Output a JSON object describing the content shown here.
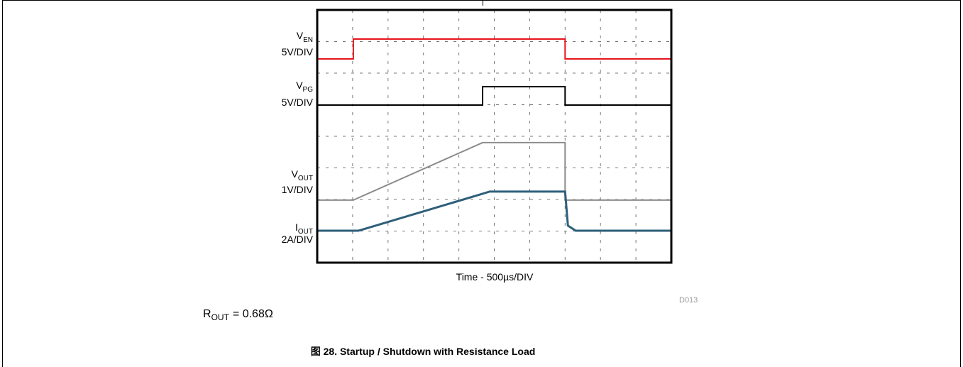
{
  "chart_data": {
    "type": "line",
    "x_label": "Time - 500µs/DIV",
    "figure_id": "D013",
    "xlim": [
      0,
      10
    ],
    "ylim": [
      0,
      8
    ],
    "xticks": [
      0,
      1,
      2,
      3,
      4,
      5,
      6,
      7,
      8,
      9,
      10
    ],
    "yticks": [
      0,
      1,
      2,
      3,
      4,
      5,
      6,
      7,
      8
    ],
    "grid": true,
    "x": [
      0,
      1.02,
      1.02,
      1.16,
      4.67,
      4.67,
      4.87,
      7.0,
      7.0,
      7.08,
      7.3,
      10
    ],
    "series": [
      {
        "name": "V",
        "subscript": "EN",
        "scale": "5V/DIV",
        "color": "#e8141b",
        "values": [
          6.45,
          6.45,
          7.08,
          7.08,
          7.08,
          7.08,
          7.08,
          7.08,
          6.45,
          6.45,
          6.45,
          6.45
        ]
      },
      {
        "name": "V",
        "subscript": "PG",
        "scale": "5V/DIV",
        "color": "#000000",
        "values": [
          4.99,
          4.99,
          4.99,
          4.99,
          4.99,
          5.57,
          5.57,
          5.57,
          4.99,
          4.99,
          4.99,
          4.99
        ]
      },
      {
        "name": "V",
        "subscript": "OUT",
        "scale": "1V/DIV",
        "color": "#8c8c8c",
        "values": [
          1.98,
          1.98,
          1.98,
          2.05,
          3.8,
          3.8,
          3.8,
          3.8,
          1.98,
          1.98,
          1.98,
          1.98
        ]
      },
      {
        "name": "I",
        "subscript": "OUT",
        "scale": "2A/DIV",
        "color": "#2e5f7a",
        "values": [
          1.01,
          1.01,
          1.01,
          1.01,
          2.18,
          2.18,
          2.25,
          2.25,
          2.25,
          1.17,
          1.01,
          1.01
        ]
      }
    ]
  },
  "note": {
    "main": "R",
    "sub": "OUT",
    "rest": "= 0.68Ω"
  },
  "caption": "图 28. Startup / Shutdown with Resistance Load"
}
